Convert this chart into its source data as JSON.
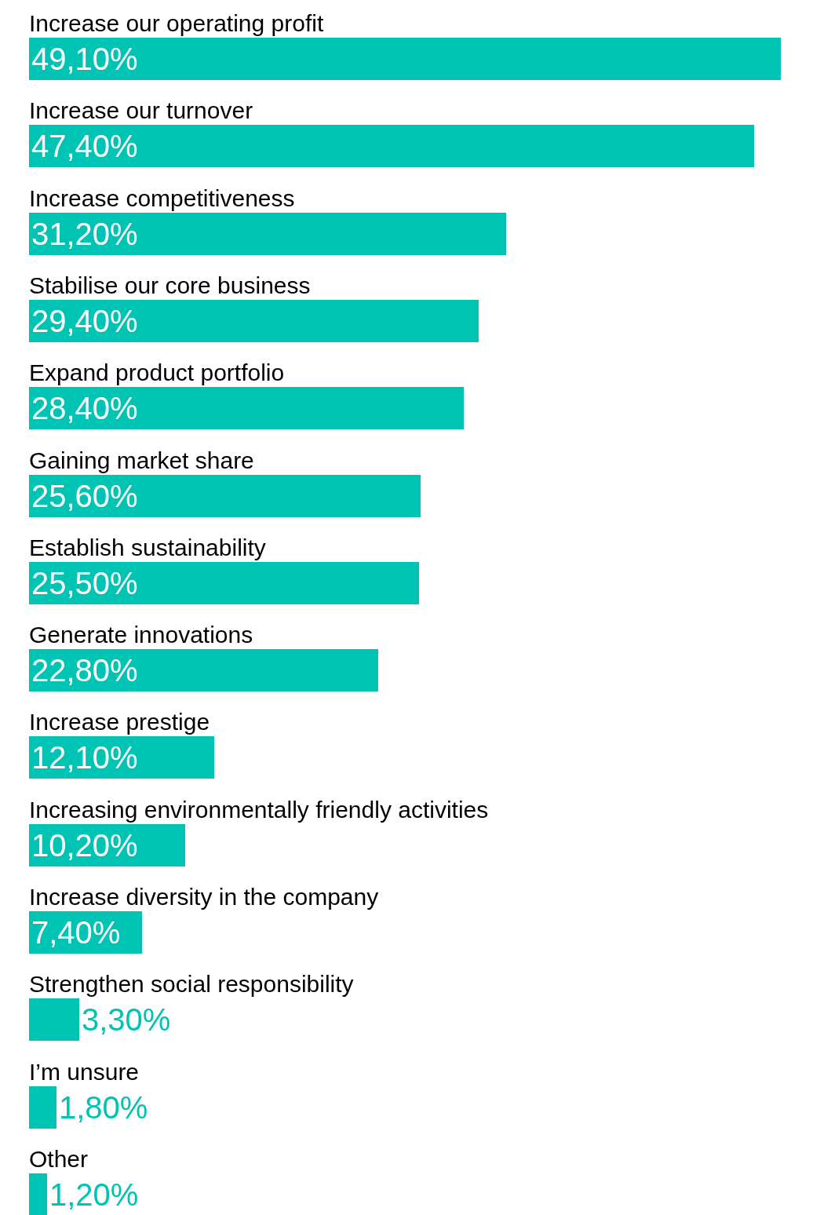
{
  "chart_data": {
    "type": "bar",
    "orientation": "horizontal",
    "categories": [
      "Increase our operating profit",
      "Increase our turnover",
      "Increase competitiveness",
      "Stabilise our core business",
      "Expand product portfolio",
      "Gaining market share",
      "Establish sustainability",
      "Generate innovations",
      "Increase prestige",
      "Increasing environmentally friendly activities",
      "Increase diversity in the company",
      "Strengthen social responsibility",
      "I’m unsure",
      "Other"
    ],
    "values": [
      49.1,
      47.4,
      31.2,
      29.4,
      28.4,
      25.6,
      25.5,
      22.8,
      12.1,
      10.2,
      7.4,
      3.3,
      1.8,
      1.2
    ],
    "value_labels": [
      "49,10%",
      "47,40%",
      "31,20%",
      "29,40%",
      "28,40%",
      "25,60%",
      "25,50%",
      "22,80%",
      "12,10%",
      "10,20%",
      "7,40%",
      "3,30%",
      "1,80%",
      "1,20%"
    ],
    "color": "#00c4b3",
    "tick_labels": false,
    "legend": false
  }
}
